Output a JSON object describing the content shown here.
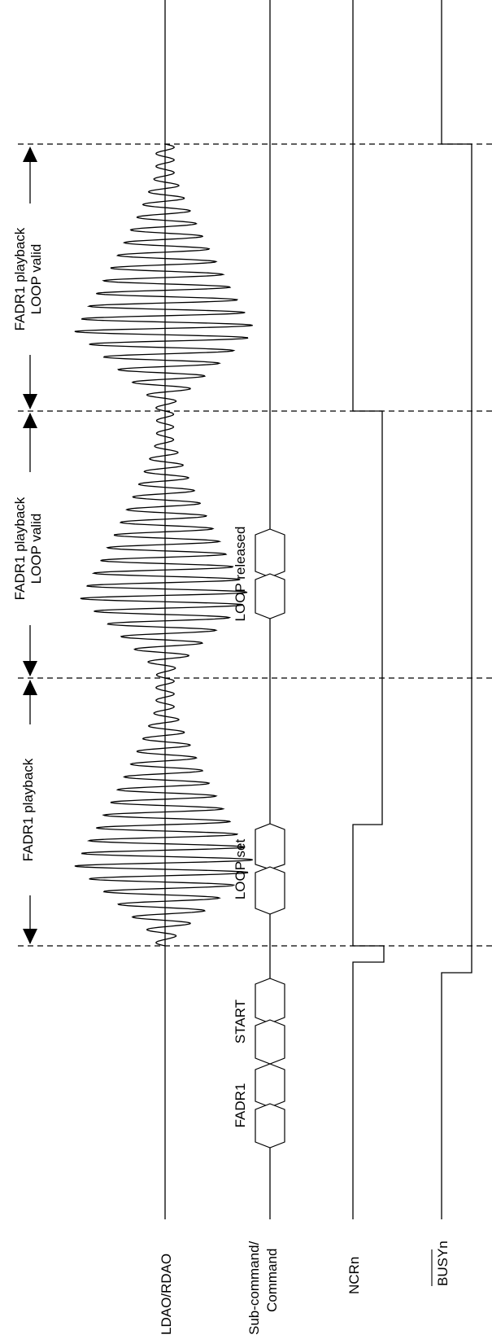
{
  "signals": {
    "audio_out": "LDAO/RDAO",
    "command_line1": "Sub-command/",
    "command_line2": "Command",
    "ncr": "NCRn",
    "busy": "BUSYn"
  },
  "commands": {
    "fadr1": "FADR1",
    "start": "START",
    "loop_set": "LOOP set",
    "loop_released": "LOOP released"
  },
  "phases": {
    "phase1_line1": "FADR1 playback",
    "phase2_line1": "FADR1 playback",
    "phase2_line2": "LOOP valid",
    "phase3_line1": "FADR1 playback",
    "phase3_line2": "LOOP valid"
  },
  "busy_overline": true
}
